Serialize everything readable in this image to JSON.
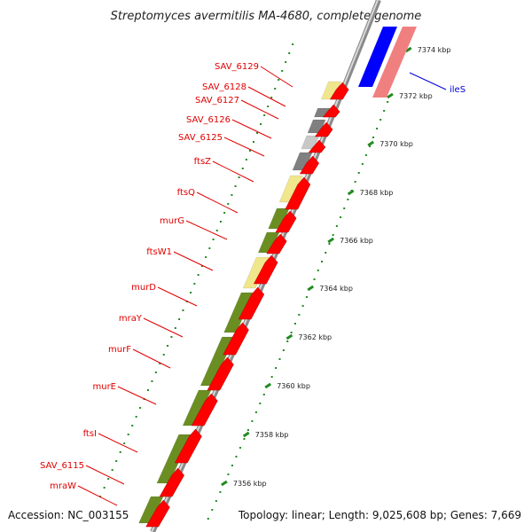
{
  "title": "Streptomyces avermitilis MA-4680, complete genome",
  "footer": {
    "accession": "Accession: NC_003155",
    "topology": "Topology: linear; Length: 9,025,608 bp; Genes: 7,669"
  },
  "scale_labels": [
    "7356 kbp",
    "7358 kbp",
    "7360 kbp",
    "7362 kbp",
    "7364 kbp",
    "7366 kbp",
    "7368 kbp",
    "7370 kbp",
    "7372 kbp",
    "7374 kbp"
  ],
  "gene_labels": [
    "SAV_6129",
    "SAV_6128",
    "SAV_6127",
    "SAV_6126",
    "SAV_6125",
    "ftsZ",
    "ftsQ",
    "murG",
    "ftsW1",
    "murD",
    "mraY",
    "murF",
    "murE",
    "ftsI",
    "SAV_6115",
    "mraW"
  ],
  "highlight_label": "ileS",
  "colors": {
    "gene_red": "#ff0000",
    "green_segment": "#6b8e23",
    "yellow_segment": "#f0e68c",
    "grey_segment": "#808080",
    "blue_segment": "#0000ff",
    "pink_segment": "#f08080",
    "tick_green": "#228b22",
    "label_red": "#e00000",
    "label_blue": "#0000e0"
  }
}
